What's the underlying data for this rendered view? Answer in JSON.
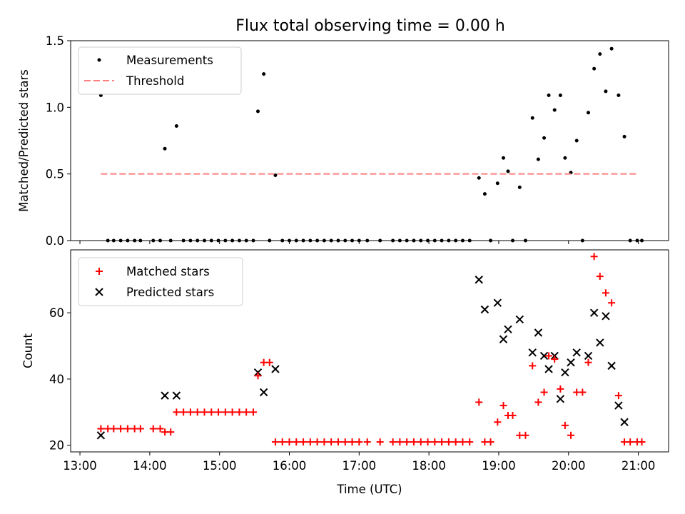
{
  "figure": {
    "title": "Flux total observing time = 0.00 h"
  },
  "chart_data": [
    {
      "type": "scatter",
      "title": "Flux total observing time = 0.00 h",
      "xlabel": "",
      "ylabel": "Matched/Predicted stars",
      "ylim": [
        0,
        1.5
      ],
      "yticks": [
        "0.0",
        "0.5",
        "1.0",
        "1.5"
      ],
      "xlim": [
        "12:52",
        "21:26"
      ],
      "legend_position": "top-left",
      "threshold": {
        "name": "Threshold",
        "value": 0.5,
        "x": [
          "13:18",
          "21:00"
        ],
        "color": "#ff7f7f"
      },
      "series": [
        {
          "name": "Measurements",
          "color": "#000000",
          "marker": "dot",
          "points": [
            [
              "13:18",
              1.09
            ],
            [
              "13:24",
              0
            ],
            [
              "13:29",
              0
            ],
            [
              "13:35",
              0
            ],
            [
              "13:41",
              0
            ],
            [
              "13:47",
              0
            ],
            [
              "13:52",
              0
            ],
            [
              "14:03",
              0
            ],
            [
              "14:09",
              0
            ],
            [
              "14:13",
              0.69
            ],
            [
              "14:18",
              0
            ],
            [
              "14:23",
              0.86
            ],
            [
              "14:29",
              0
            ],
            [
              "14:35",
              0
            ],
            [
              "14:41",
              0
            ],
            [
              "14:47",
              0
            ],
            [
              "14:53",
              0
            ],
            [
              "14:59",
              0
            ],
            [
              "15:05",
              0
            ],
            [
              "15:11",
              0
            ],
            [
              "15:17",
              0
            ],
            [
              "15:23",
              0
            ],
            [
              "15:29",
              0
            ],
            [
              "15:33",
              0.97
            ],
            [
              "15:38",
              1.25
            ],
            [
              "15:43",
              0
            ],
            [
              "15:48",
              0.49
            ],
            [
              "15:54",
              0
            ],
            [
              "16:00",
              0
            ],
            [
              "16:06",
              0
            ],
            [
              "16:12",
              0
            ],
            [
              "16:18",
              0
            ],
            [
              "16:24",
              0
            ],
            [
              "16:30",
              0
            ],
            [
              "16:36",
              0
            ],
            [
              "16:42",
              0
            ],
            [
              "16:48",
              0
            ],
            [
              "16:54",
              0
            ],
            [
              "17:00",
              0
            ],
            [
              "17:07",
              0
            ],
            [
              "17:18",
              0
            ],
            [
              "17:29",
              0
            ],
            [
              "17:35",
              0
            ],
            [
              "17:41",
              0
            ],
            [
              "17:47",
              0
            ],
            [
              "17:53",
              0
            ],
            [
              "17:59",
              0
            ],
            [
              "18:05",
              0
            ],
            [
              "18:11",
              0
            ],
            [
              "18:17",
              0
            ],
            [
              "18:23",
              0
            ],
            [
              "18:29",
              0
            ],
            [
              "18:35",
              0
            ],
            [
              "18:43",
              0.47
            ],
            [
              "18:48",
              0.35
            ],
            [
              "18:53",
              0
            ],
            [
              "18:59",
              0.43
            ],
            [
              "19:04",
              0.62
            ],
            [
              "19:08",
              0.52
            ],
            [
              "19:12",
              0
            ],
            [
              "19:18",
              0.4
            ],
            [
              "19:23",
              0
            ],
            [
              "19:29",
              0.92
            ],
            [
              "19:34",
              0.61
            ],
            [
              "19:39",
              0.77
            ],
            [
              "19:43",
              1.09
            ],
            [
              "19:48",
              0.98
            ],
            [
              "19:53",
              1.09
            ],
            [
              "19:57",
              0.62
            ],
            [
              "20:02",
              0.51
            ],
            [
              "20:07",
              0.75
            ],
            [
              "20:12",
              0
            ],
            [
              "20:17",
              0.96
            ],
            [
              "20:22",
              1.29
            ],
            [
              "20:27",
              1.4
            ],
            [
              "20:32",
              1.12
            ],
            [
              "20:37",
              1.44
            ],
            [
              "20:43",
              1.09
            ],
            [
              "20:48",
              0.78
            ],
            [
              "20:53",
              0
            ],
            [
              "20:59",
              0
            ],
            [
              "21:03",
              0
            ]
          ]
        }
      ]
    },
    {
      "type": "scatter",
      "xlabel": "Time (UTC)",
      "ylabel": "Count",
      "ylim": [
        18,
        79
      ],
      "yticks": [
        "20",
        "40",
        "60"
      ],
      "xlim": [
        "12:52",
        "21:26"
      ],
      "xticks": [
        "13:00",
        "14:00",
        "15:00",
        "16:00",
        "17:00",
        "18:00",
        "19:00",
        "20:00",
        "21:00"
      ],
      "legend_position": "top-left",
      "series": [
        {
          "name": "Matched stars",
          "color": "#ff0000",
          "marker": "plus",
          "points": [
            [
              "13:18",
              25
            ],
            [
              "13:24",
              25
            ],
            [
              "13:29",
              25
            ],
            [
              "13:35",
              25
            ],
            [
              "13:41",
              25
            ],
            [
              "13:47",
              25
            ],
            [
              "13:52",
              25
            ],
            [
              "14:03",
              25
            ],
            [
              "14:09",
              25
            ],
            [
              "14:13",
              24
            ],
            [
              "14:18",
              24
            ],
            [
              "14:23",
              30
            ],
            [
              "14:29",
              30
            ],
            [
              "14:35",
              30
            ],
            [
              "14:41",
              30
            ],
            [
              "14:47",
              30
            ],
            [
              "14:53",
              30
            ],
            [
              "14:59",
              30
            ],
            [
              "15:05",
              30
            ],
            [
              "15:11",
              30
            ],
            [
              "15:17",
              30
            ],
            [
              "15:23",
              30
            ],
            [
              "15:29",
              30
            ],
            [
              "15:33",
              41
            ],
            [
              "15:38",
              45
            ],
            [
              "15:43",
              45
            ],
            [
              "15:48",
              21
            ],
            [
              "15:54",
              21
            ],
            [
              "16:00",
              21
            ],
            [
              "16:06",
              21
            ],
            [
              "16:12",
              21
            ],
            [
              "16:18",
              21
            ],
            [
              "16:24",
              21
            ],
            [
              "16:30",
              21
            ],
            [
              "16:36",
              21
            ],
            [
              "16:42",
              21
            ],
            [
              "16:48",
              21
            ],
            [
              "16:54",
              21
            ],
            [
              "17:00",
              21
            ],
            [
              "17:07",
              21
            ],
            [
              "17:18",
              21
            ],
            [
              "17:29",
              21
            ],
            [
              "17:35",
              21
            ],
            [
              "17:41",
              21
            ],
            [
              "17:47",
              21
            ],
            [
              "17:53",
              21
            ],
            [
              "17:59",
              21
            ],
            [
              "18:05",
              21
            ],
            [
              "18:11",
              21
            ],
            [
              "18:17",
              21
            ],
            [
              "18:23",
              21
            ],
            [
              "18:29",
              21
            ],
            [
              "18:35",
              21
            ],
            [
              "18:43",
              33
            ],
            [
              "18:48",
              21
            ],
            [
              "18:53",
              21
            ],
            [
              "18:59",
              27
            ],
            [
              "19:04",
              32
            ],
            [
              "19:08",
              29
            ],
            [
              "19:12",
              29
            ],
            [
              "19:18",
              23
            ],
            [
              "19:23",
              23
            ],
            [
              "19:29",
              44
            ],
            [
              "19:34",
              33
            ],
            [
              "19:39",
              36
            ],
            [
              "19:43",
              47
            ],
            [
              "19:48",
              46
            ],
            [
              "19:53",
              37
            ],
            [
              "19:57",
              26
            ],
            [
              "20:02",
              23
            ],
            [
              "20:07",
              36
            ],
            [
              "20:12",
              36
            ],
            [
              "20:17",
              45
            ],
            [
              "20:22",
              77
            ],
            [
              "20:27",
              71
            ],
            [
              "20:32",
              66
            ],
            [
              "20:37",
              63
            ],
            [
              "20:43",
              35
            ],
            [
              "20:48",
              21
            ],
            [
              "20:53",
              21
            ],
            [
              "20:59",
              21
            ],
            [
              "21:03",
              21
            ]
          ]
        },
        {
          "name": "Predicted stars",
          "color": "#000000",
          "marker": "x",
          "points": [
            [
              "13:18",
              23
            ],
            [
              "14:13",
              35
            ],
            [
              "14:23",
              35
            ],
            [
              "15:33",
              42
            ],
            [
              "15:38",
              36
            ],
            [
              "15:48",
              43
            ],
            [
              "18:43",
              70
            ],
            [
              "18:48",
              61
            ],
            [
              "18:59",
              63
            ],
            [
              "19:04",
              52
            ],
            [
              "19:08",
              55
            ],
            [
              "19:18",
              58
            ],
            [
              "19:29",
              48
            ],
            [
              "19:34",
              54
            ],
            [
              "19:39",
              47
            ],
            [
              "19:43",
              43
            ],
            [
              "19:48",
              47
            ],
            [
              "19:53",
              34
            ],
            [
              "19:57",
              42
            ],
            [
              "20:02",
              45
            ],
            [
              "20:07",
              48
            ],
            [
              "20:17",
              47
            ],
            [
              "20:22",
              60
            ],
            [
              "20:27",
              51
            ],
            [
              "20:32",
              59
            ],
            [
              "20:37",
              44
            ],
            [
              "20:43",
              32
            ],
            [
              "20:48",
              27
            ]
          ]
        }
      ]
    }
  ]
}
